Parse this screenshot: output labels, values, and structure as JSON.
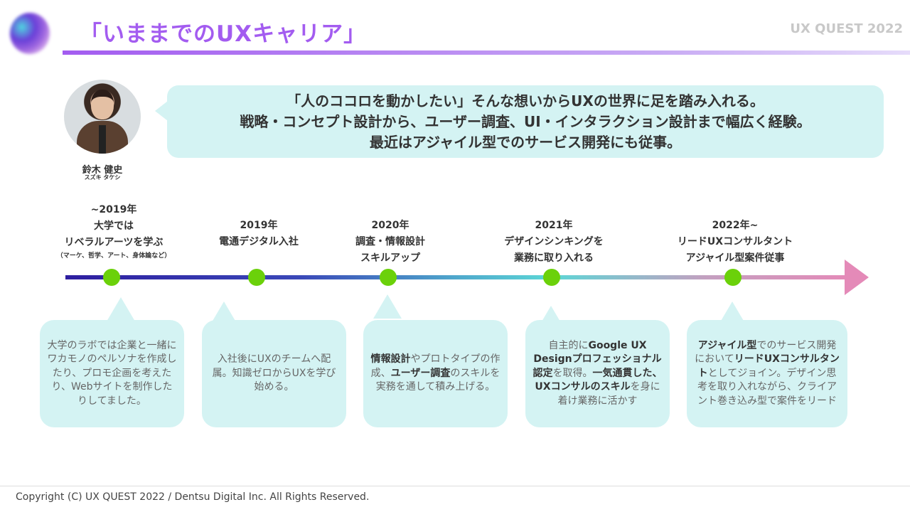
{
  "header": {
    "title": "「いままでのUXキャリア」",
    "brand": "UX QUEST 2022"
  },
  "profile": {
    "name": "鈴木 健史",
    "kana": "スズキ タケシ",
    "quote": [
      "「人のココロを動かしたい」そんな想いからUXの世界に足を踏み入れる。",
      "戦略・コンセプト設計から、ユーザー調査、UI・インタラクション設計まで幅広く経験。",
      "最近はアジャイル型でのサービス開発にも従事。"
    ]
  },
  "timeline": [
    {
      "lines": [
        "~2019年",
        "大学では",
        "リベラルアーツを学ぶ"
      ],
      "note": "（マーケ、哲学、アート、身体論など）",
      "card": [
        {
          "t": "大学のラボでは企業と一緒にワカモノのペルソナを作成したり、プロモ企画を考えたり、Webサイトを制作したりしてました。"
        }
      ]
    },
    {
      "lines": [
        "2019年",
        "電通デジタル入社"
      ],
      "card": [
        {
          "t": "入社後にUXのチームへ配属。知識ゼロからUXを学び始める。"
        }
      ]
    },
    {
      "lines": [
        "2020年",
        "調査・情報設計",
        "スキルアップ"
      ],
      "card": [
        {
          "t": "情報設計",
          "b": true
        },
        {
          "t": "やプロトタイプの作成、"
        },
        {
          "t": "ユーザー調査",
          "b": true
        },
        {
          "t": "のスキルを実務を通して積み上げる。"
        }
      ]
    },
    {
      "lines": [
        "2021年",
        "デザインシンキングを",
        "業務に取り入れる"
      ],
      "card": [
        {
          "t": "自主的に"
        },
        {
          "t": "Google UX Designプロフェッショナル認定",
          "b": true
        },
        {
          "t": "を取得。"
        },
        {
          "t": "一気通貫した、UXコンサルのスキル",
          "b": true
        },
        {
          "t": "を身に着け業務に活かす"
        }
      ]
    },
    {
      "lines": [
        "2022年~",
        "リードUXコンサルタント",
        "アジャイル型案件従事"
      ],
      "card": [
        {
          "t": "アジャイル型",
          "b": true
        },
        {
          "t": "でのサービス開発において"
        },
        {
          "t": "リードUXコンサルタント",
          "b": true
        },
        {
          "t": "としてジョイン。デザイン思考を取り入れながら、クライアント巻き込み型で案件をリード"
        }
      ]
    }
  ],
  "colors": {
    "accent": "#a35cf0",
    "milestone": "#6bd10a",
    "bubble": "#d4f3f3",
    "arrow": "#e48ab8"
  },
  "footer": {
    "copyright": "Copyright (C) UX QUEST 2022 / Dentsu Digital Inc. All Rights Reserved."
  }
}
